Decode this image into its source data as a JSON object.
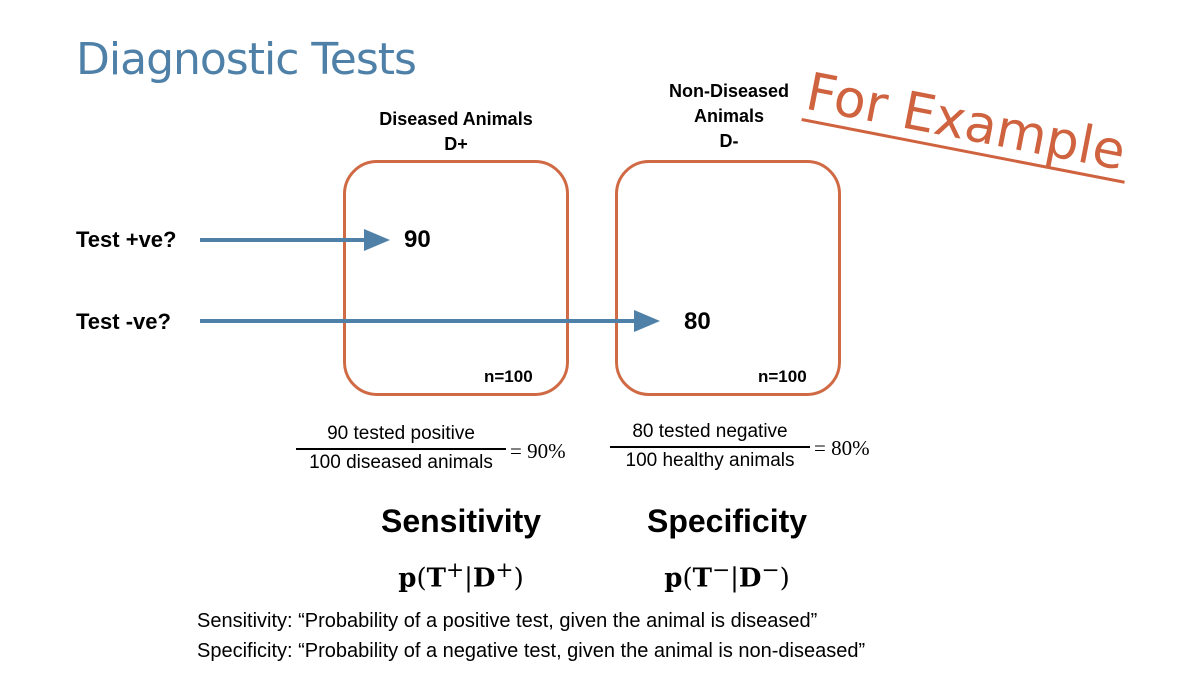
{
  "title": "Diagnostic Tests",
  "stamp": "For Example",
  "columns": [
    {
      "header_line1": "Diseased Animals",
      "header_line2": "D+",
      "main_value": "90",
      "n_label": "n=100"
    },
    {
      "header_line1": "Non-Diseased",
      "header_line1b": "Animals",
      "header_line2": "D-",
      "main_value": "80",
      "n_label": "n=100"
    }
  ],
  "rows": [
    {
      "label": "Test +ve?"
    },
    {
      "label": "Test -ve?"
    }
  ],
  "fractions": [
    {
      "numerator": "90 tested positive",
      "denominator": "100 diseased animals",
      "result": "= 90%"
    },
    {
      "numerator": "80 tested negative",
      "denominator": "100 healthy animals",
      "result": "= 80%"
    }
  ],
  "measures": [
    {
      "name": "Sensitivity",
      "formula_p": "p",
      "formula_T": "T",
      "formula_Tsup": "+",
      "formula_D": "D",
      "formula_Dsup": "+"
    },
    {
      "name": "Specificity",
      "formula_p": "p",
      "formula_T": "T",
      "formula_Tsup": "−",
      "formula_D": "D",
      "formula_Dsup": "−"
    }
  ],
  "definitions": [
    "Sensitivity: “Probability of a positive test, given the animal is diseased”",
    "Specificity: “Probability of a negative test, given the animal is non-diseased”"
  ],
  "colors": {
    "title": "#4f81a8",
    "box_border": "#cf6a45",
    "arrow": "#4f81a8",
    "stamp": "#d0633f"
  }
}
